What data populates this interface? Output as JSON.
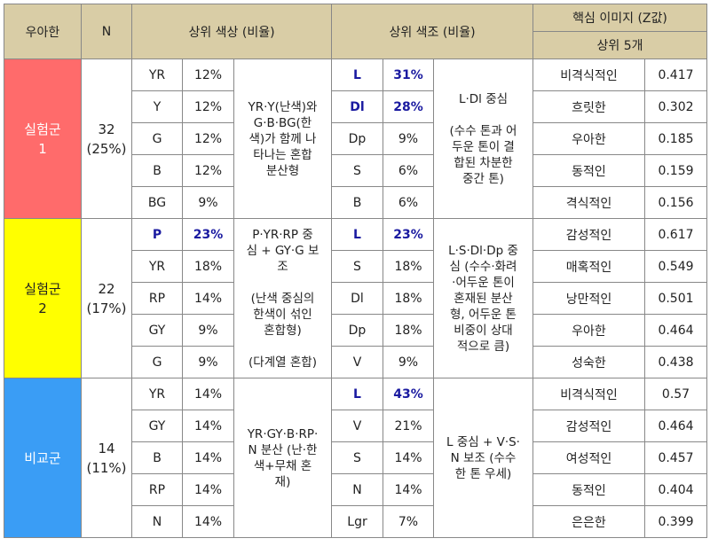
{
  "headers": {
    "group": "우아한",
    "n": "N",
    "top_hue": "상위 색상 (비율)",
    "top_tone": "상위 색조 (비율)",
    "image_line1": "핵심 이미지 (Z값)",
    "image_line2": "상위 5개"
  },
  "groups": [
    {
      "name_line1": "실험군",
      "name_line2": "1",
      "n": "32",
      "pct": "(25%)",
      "hues": [
        {
          "code": "YR",
          "pct": "12%"
        },
        {
          "code": "Y",
          "pct": "12%"
        },
        {
          "code": "G",
          "pct": "12%"
        },
        {
          "code": "B",
          "pct": "12%"
        },
        {
          "code": "BG",
          "pct": "9%"
        }
      ],
      "hue_desc": [
        "YR·Y(난색)와",
        "G·B·BG(한",
        "색)가 함께 나",
        "타나는 혼합",
        "분산형"
      ],
      "tones": [
        {
          "code": "L",
          "pct": "31%"
        },
        {
          "code": "Dl",
          "pct": "28%"
        },
        {
          "code": "Dp",
          "pct": "9%"
        },
        {
          "code": "S",
          "pct": "6%"
        },
        {
          "code": "B",
          "pct": "6%"
        }
      ],
      "tone_desc": [
        "L·Dl 중심",
        "",
        "(수수 톤과 어",
        "두운 톤이 결",
        "합된 차분한",
        "중간 톤)"
      ],
      "images": [
        {
          "word": "비격식적인",
          "z": "0.417"
        },
        {
          "word": "흐릿한",
          "z": "0.302"
        },
        {
          "word": "우아한",
          "z": "0.185"
        },
        {
          "word": "동적인",
          "z": "0.159"
        },
        {
          "word": "격식적인",
          "z": "0.156"
        }
      ]
    },
    {
      "name_line1": "실험군",
      "name_line2": "2",
      "n": "22",
      "pct": "(17%)",
      "hues": [
        {
          "code": "P",
          "pct": "23%"
        },
        {
          "code": "YR",
          "pct": "18%"
        },
        {
          "code": "RP",
          "pct": "14%"
        },
        {
          "code": "GY",
          "pct": "9%"
        },
        {
          "code": "G",
          "pct": "9%"
        }
      ],
      "hue_desc": [
        "P·YR·RP 중",
        "심 + GY·G 보",
        "조",
        "",
        "(난색 중심의",
        "한색이 섞인",
        "혼합형)",
        "",
        "(다계열 혼합)"
      ],
      "tones": [
        {
          "code": "L",
          "pct": "23%"
        },
        {
          "code": "S",
          "pct": "18%"
        },
        {
          "code": "Dl",
          "pct": "18%"
        },
        {
          "code": "Dp",
          "pct": "18%"
        },
        {
          "code": "V",
          "pct": "9%"
        }
      ],
      "tone_desc": [
        "L·S·Dl·Dp 중",
        "심 (수수·화려",
        "·어두운 톤이",
        "혼재된 분산",
        "형, 어두운 톤",
        "비중이 상대",
        "적으로 큼)"
      ],
      "images": [
        {
          "word": "감성적인",
          "z": "0.617"
        },
        {
          "word": "매혹적인",
          "z": "0.549"
        },
        {
          "word": "낭만적인",
          "z": "0.501"
        },
        {
          "word": "우아한",
          "z": "0.464"
        },
        {
          "word": "성숙한",
          "z": "0.438"
        }
      ]
    },
    {
      "name_line1": "비교군",
      "name_line2": "",
      "n": "14",
      "pct": "(11%)",
      "hues": [
        {
          "code": "YR",
          "pct": "14%"
        },
        {
          "code": "GY",
          "pct": "14%"
        },
        {
          "code": "B",
          "pct": "14%"
        },
        {
          "code": "RP",
          "pct": "14%"
        },
        {
          "code": "N",
          "pct": "14%"
        }
      ],
      "hue_desc": [
        "YR·GY·B·RP·",
        "N 분산 (난·한",
        "색+무채 혼",
        "재)"
      ],
      "tones": [
        {
          "code": "L",
          "pct": "43%"
        },
        {
          "code": "V",
          "pct": "21%"
        },
        {
          "code": "S",
          "pct": "14%"
        },
        {
          "code": "N",
          "pct": "14%"
        },
        {
          "code": "Lgr",
          "pct": "7%"
        }
      ],
      "tone_desc": [
        "L 중심 + V·S·",
        "N 보조 (수수",
        "한 톤 우세)"
      ],
      "images": [
        {
          "word": "비격식적인",
          "z": "0.57"
        },
        {
          "word": "감성적인",
          "z": "0.464"
        },
        {
          "word": "여성적인",
          "z": "0.457"
        },
        {
          "word": "동적인",
          "z": "0.404"
        },
        {
          "word": "은은한",
          "z": "0.399"
        }
      ]
    }
  ],
  "colors": {
    "header_bg": "#d9cda6",
    "group1": "#ff6b6b",
    "group2": "#ffff00",
    "group3": "#3a9df5",
    "highlight": "#1a1aa0"
  }
}
